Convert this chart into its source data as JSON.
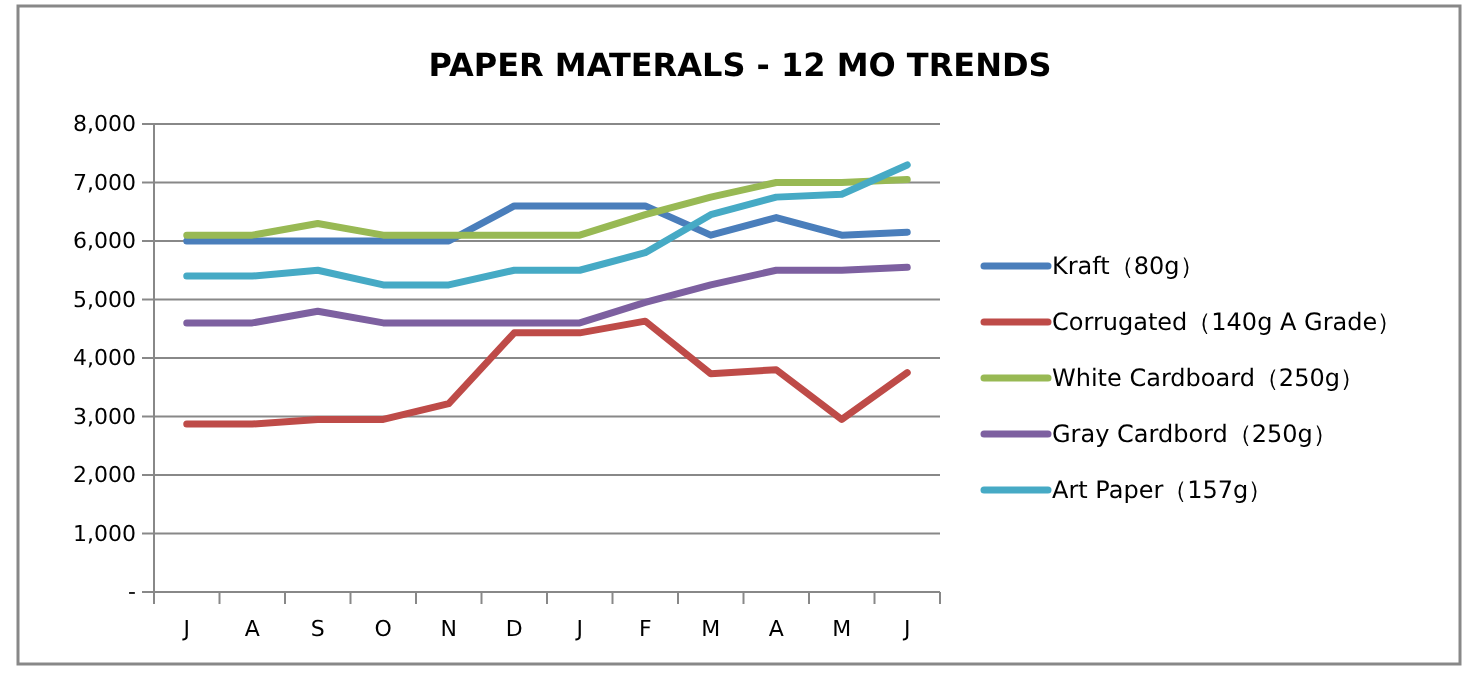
{
  "chart_data": {
    "type": "line",
    "title": "PAPER MATERALS - 12 MO TRENDS",
    "categories": [
      "J",
      "A",
      "S",
      "O",
      "N",
      "D",
      "J",
      "F",
      "M",
      "A",
      "M",
      "J"
    ],
    "ylim": [
      0,
      8000
    ],
    "yticks": [
      {
        "value": 0,
        "label": "-"
      },
      {
        "value": 1000,
        "label": "1,000"
      },
      {
        "value": 2000,
        "label": "2,000"
      },
      {
        "value": 3000,
        "label": "3,000"
      },
      {
        "value": 4000,
        "label": "4,000"
      },
      {
        "value": 5000,
        "label": "5,000"
      },
      {
        "value": 6000,
        "label": "6,000"
      },
      {
        "value": 7000,
        "label": "7,000"
      },
      {
        "value": 8000,
        "label": "8,000"
      }
    ],
    "grid": "y",
    "legend": "right",
    "marker": "none",
    "line_style": "solid",
    "series": [
      {
        "name": "Kraft（80g）",
        "color": "#4a7ebb",
        "values": [
          6000,
          6000,
          6000,
          6000,
          6000,
          6600,
          6600,
          6600,
          6100,
          6400,
          6100,
          6150
        ]
      },
      {
        "name": "Corrugated（140g A Grade）",
        "color": "#be4b48",
        "values": [
          2870,
          2870,
          2950,
          2950,
          3220,
          4430,
          4430,
          4630,
          3730,
          3800,
          2950,
          3750
        ]
      },
      {
        "name": "White Cardboard（250g）",
        "color": "#98b954",
        "values": [
          6100,
          6100,
          6300,
          6100,
          6100,
          6100,
          6100,
          6450,
          6750,
          7000,
          7000,
          7050
        ]
      },
      {
        "name": "Gray Cardbord（250g）",
        "color": "#7d60a0",
        "values": [
          4600,
          4600,
          4800,
          4600,
          4600,
          4600,
          4600,
          4950,
          5250,
          5500,
          5500,
          5550
        ]
      },
      {
        "name": "Art Paper（157g）",
        "color": "#46aac5",
        "values": [
          5400,
          5400,
          5500,
          5250,
          5250,
          5500,
          5500,
          5800,
          6450,
          6750,
          6800,
          7300
        ]
      }
    ]
  }
}
